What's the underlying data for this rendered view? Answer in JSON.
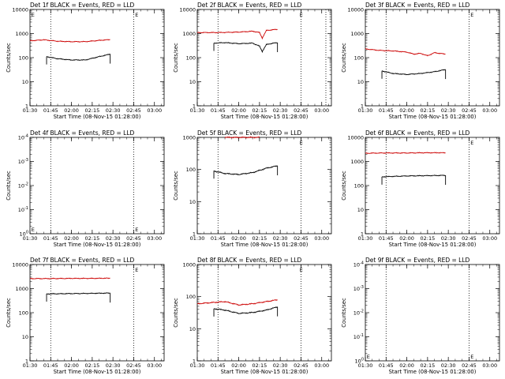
{
  "chart_data": [
    {
      "type": "line",
      "title": "Det 1f BLACK = Events, RED = LLD",
      "xlabel": "Start Time (08-Nov-15 01:28:00)",
      "ylabel": "Counts/sec",
      "x_ticks": [
        "01:30",
        "01:45",
        "02:00",
        "02:15",
        "02:30",
        "02:45",
        "03:00"
      ],
      "y_ticks": [
        "1",
        "10",
        "100",
        "1000",
        "10000"
      ],
      "ylim": [
        1,
        10000
      ],
      "scale": "log",
      "markers": [
        {
          "time": "01:45",
          "type": "dotted-line"
        },
        {
          "time": "02:45",
          "type": "dotted-line"
        },
        {
          "time": "01:31",
          "type": "E"
        },
        {
          "time": "02:46",
          "type": "E"
        }
      ],
      "series": [
        {
          "name": "BLACK",
          "color": "#000000",
          "x": [
            "01:42",
            "01:50",
            "02:00",
            "02:10",
            "02:20",
            "02:28"
          ],
          "y": [
            110,
            90,
            80,
            80,
            110,
            140
          ]
        },
        {
          "name": "RED",
          "color": "#cc0000",
          "x": [
            "01:30",
            "01:40",
            "01:50",
            "02:00",
            "02:10",
            "02:20",
            "02:28"
          ],
          "y": [
            500,
            550,
            480,
            460,
            460,
            520,
            560
          ]
        }
      ]
    },
    {
      "type": "line",
      "title": "Det 2f BLACK = Events, RED = LLD",
      "xlabel": "Start Time (08-Nov-15 01:28:00)",
      "ylabel": "Counts/sec",
      "x_ticks": [
        "01:30",
        "01:45",
        "02:00",
        "02:15",
        "02:30",
        "02:45",
        "03:00"
      ],
      "y_ticks": [
        "1",
        "10",
        "100",
        "1000",
        "10000"
      ],
      "ylim": [
        1,
        10000
      ],
      "scale": "log",
      "markers": [
        {
          "time": "01:45",
          "type": "dotted-line"
        },
        {
          "time": "02:45",
          "type": "dotted-line"
        },
        {
          "time": "02:44",
          "type": "E"
        },
        {
          "time": "03:03",
          "type": "dotted-line"
        }
      ],
      "series": [
        {
          "name": "BLACK",
          "color": "#000000",
          "x": [
            "01:42",
            "01:50",
            "02:00",
            "02:10",
            "02:15",
            "02:17",
            "02:20",
            "02:25",
            "02:28"
          ],
          "y": [
            400,
            420,
            380,
            400,
            300,
            180,
            350,
            400,
            420
          ]
        },
        {
          "name": "RED",
          "color": "#cc0000",
          "x": [
            "01:30",
            "01:45",
            "02:00",
            "02:10",
            "02:15",
            "02:17",
            "02:20",
            "02:28"
          ],
          "y": [
            1100,
            1100,
            1150,
            1250,
            1100,
            650,
            1350,
            1500
          ]
        }
      ]
    },
    {
      "type": "line",
      "title": "Det 3f BLACK = Events, RED = LLD",
      "xlabel": "Start Time (08-Nov-15 01:28:00)",
      "ylabel": "Counts/sec",
      "x_ticks": [
        "01:30",
        "01:45",
        "02:00",
        "02:15",
        "02:30",
        "02:45",
        "03:00"
      ],
      "y_ticks": [
        "1",
        "10",
        "100",
        "1000",
        "10000"
      ],
      "ylim": [
        1,
        10000
      ],
      "scale": "log",
      "markers": [
        {
          "time": "01:45",
          "type": "dotted-line"
        },
        {
          "time": "02:45",
          "type": "dotted-line"
        },
        {
          "time": "02:46",
          "type": "E"
        }
      ],
      "series": [
        {
          "name": "BLACK",
          "color": "#000000",
          "x": [
            "01:42",
            "01:50",
            "02:00",
            "02:10",
            "02:20",
            "02:28"
          ],
          "y": [
            28,
            22,
            20,
            22,
            26,
            32
          ]
        },
        {
          "name": "RED",
          "color": "#cc0000",
          "x": [
            "01:30",
            "01:40",
            "01:50",
            "02:00",
            "02:05",
            "02:10",
            "02:15",
            "02:20",
            "02:28"
          ],
          "y": [
            230,
            200,
            190,
            170,
            140,
            150,
            120,
            160,
            140
          ]
        }
      ]
    },
    {
      "type": "line",
      "title": "Det 4f BLACK = Events, RED = LLD",
      "xlabel": "Start Time (08-Nov-15 01:28:00)",
      "ylabel": "Counts/sec",
      "x_ticks": [
        "01:30",
        "01:45",
        "02:00",
        "02:15",
        "02:30",
        "02:45",
        "03:00"
      ],
      "y_ticks": [
        "10^0",
        "10^-1",
        "10^-2",
        "10^-3",
        "10^-4"
      ],
      "scale": "log",
      "markers": [
        {
          "time": "01:45",
          "type": "dotted-line"
        },
        {
          "time": "02:45",
          "type": "dotted-line"
        },
        {
          "time": "01:31",
          "type": "E"
        },
        {
          "time": "02:46",
          "type": "E"
        }
      ],
      "series": []
    },
    {
      "type": "line",
      "title": "Det 5f BLACK = Events, RED = LLD",
      "xlabel": "Start Time (08-Nov-15 01:28:00)",
      "ylabel": "Counts/sec",
      "x_ticks": [
        "01:30",
        "01:45",
        "02:00",
        "02:15",
        "02:30",
        "02:45",
        "03:00"
      ],
      "y_ticks": [
        "1",
        "10",
        "100",
        "1000"
      ],
      "ylim": [
        1,
        1000
      ],
      "scale": "log",
      "markers": [
        {
          "time": "01:45",
          "type": "dotted-line"
        },
        {
          "time": "02:45",
          "type": "dotted-line"
        },
        {
          "time": "02:44",
          "type": "E"
        }
      ],
      "series": [
        {
          "name": "BLACK",
          "color": "#000000",
          "x": [
            "01:42",
            "01:50",
            "02:00",
            "02:10",
            "02:20",
            "02:28"
          ],
          "y": [
            90,
            75,
            70,
            80,
            110,
            130
          ]
        },
        {
          "name": "RED",
          "color": "#cc0000",
          "x": [
            "01:50",
            "02:00",
            "02:10",
            "02:15"
          ],
          "y": [
            1000,
            1000,
            1000,
            1000
          ]
        }
      ]
    },
    {
      "type": "line",
      "title": "Det 6f BLACK = Events, RED = LLD",
      "xlabel": "Start Time (08-Nov-15 01:28:00)",
      "ylabel": "Counts/sec",
      "x_ticks": [
        "01:30",
        "01:45",
        "02:00",
        "02:15",
        "02:30",
        "02:45",
        "03:00"
      ],
      "y_ticks": [
        "1",
        "10",
        "100",
        "1000",
        "10000"
      ],
      "ylim": [
        1,
        10000
      ],
      "scale": "log",
      "markers": [
        {
          "time": "01:45",
          "type": "dotted-line"
        },
        {
          "time": "02:45",
          "type": "dotted-line"
        },
        {
          "time": "02:46",
          "type": "E"
        }
      ],
      "series": [
        {
          "name": "BLACK",
          "color": "#000000",
          "x": [
            "01:42",
            "01:50",
            "02:00",
            "02:10",
            "02:20",
            "02:28"
          ],
          "y": [
            230,
            240,
            250,
            255,
            260,
            265
          ]
        },
        {
          "name": "RED",
          "color": "#cc0000",
          "x": [
            "01:30",
            "01:45",
            "02:00",
            "02:15",
            "02:28"
          ],
          "y": [
            2200,
            2250,
            2250,
            2300,
            2300
          ]
        }
      ]
    },
    {
      "type": "line",
      "title": "Det 7f BLACK = Events, RED = LLD",
      "xlabel": "Start Time (08-Nov-15 01:28:00)",
      "ylabel": "Counts/sec",
      "x_ticks": [
        "01:30",
        "01:45",
        "02:00",
        "02:15",
        "02:30",
        "02:45",
        "03:00"
      ],
      "y_ticks": [
        "1",
        "10",
        "100",
        "1000",
        "10000"
      ],
      "ylim": [
        1,
        10000
      ],
      "scale": "log",
      "markers": [
        {
          "time": "01:45",
          "type": "dotted-line"
        },
        {
          "time": "02:45",
          "type": "dotted-line"
        },
        {
          "time": "02:46",
          "type": "E"
        }
      ],
      "series": [
        {
          "name": "BLACK",
          "color": "#000000",
          "x": [
            "01:42",
            "01:50",
            "02:00",
            "02:10",
            "02:20",
            "02:28"
          ],
          "y": [
            600,
            610,
            620,
            630,
            640,
            650
          ]
        },
        {
          "name": "RED",
          "color": "#cc0000",
          "x": [
            "01:30",
            "01:45",
            "02:00",
            "02:15",
            "02:28"
          ],
          "y": [
            2600,
            2600,
            2650,
            2650,
            2700
          ]
        }
      ]
    },
    {
      "type": "line",
      "title": "Det 8f BLACK = Events, RED = LLD",
      "xlabel": "Start Time (08-Nov-15 01:28:00)",
      "ylabel": "Counts/sec",
      "x_ticks": [
        "01:30",
        "01:45",
        "02:00",
        "02:15",
        "02:30",
        "02:45",
        "03:00"
      ],
      "y_ticks": [
        "1",
        "10",
        "100",
        "1000"
      ],
      "ylim": [
        1,
        1000
      ],
      "scale": "log",
      "markers": [
        {
          "time": "01:45",
          "type": "dotted-line"
        },
        {
          "time": "02:45",
          "type": "dotted-line"
        },
        {
          "time": "02:44",
          "type": "E"
        }
      ],
      "series": [
        {
          "name": "BLACK",
          "color": "#000000",
          "x": [
            "01:42",
            "01:50",
            "02:00",
            "02:10",
            "02:20",
            "02:28"
          ],
          "y": [
            42,
            38,
            30,
            32,
            38,
            48
          ]
        },
        {
          "name": "RED",
          "color": "#cc0000",
          "x": [
            "01:30",
            "01:40",
            "01:50",
            "02:00",
            "02:10",
            "02:20",
            "02:28"
          ],
          "y": [
            60,
            65,
            70,
            55,
            60,
            70,
            80
          ]
        }
      ]
    },
    {
      "type": "line",
      "title": "Det 9f BLACK = Events, RED = LLD",
      "xlabel": "Start Time (08-Nov-15 01:28:00)",
      "ylabel": "Counts/sec",
      "x_ticks": [
        "01:30",
        "01:45",
        "02:00",
        "02:15",
        "02:30",
        "02:45",
        "03:00"
      ],
      "y_ticks": [
        "10^0",
        "10^-1",
        "10^-2",
        "10^-3",
        "10^-4"
      ],
      "scale": "log",
      "markers": [
        {
          "time": "01:45",
          "type": "dotted-line"
        },
        {
          "time": "02:45",
          "type": "dotted-line"
        },
        {
          "time": "01:31",
          "type": "E"
        },
        {
          "time": "02:46",
          "type": "E"
        }
      ],
      "series": []
    }
  ]
}
